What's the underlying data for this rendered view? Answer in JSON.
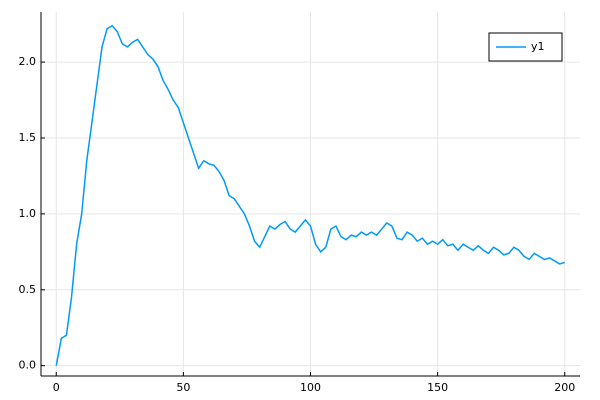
{
  "chart_data": {
    "type": "line",
    "x": [
      0,
      2,
      4,
      6,
      8,
      10,
      12,
      14,
      16,
      18,
      20,
      22,
      24,
      26,
      28,
      30,
      32,
      34,
      36,
      38,
      40,
      42,
      44,
      46,
      48,
      50,
      52,
      54,
      56,
      58,
      60,
      62,
      64,
      66,
      68,
      70,
      72,
      74,
      76,
      78,
      80,
      82,
      84,
      86,
      88,
      90,
      92,
      94,
      96,
      98,
      100,
      102,
      104,
      106,
      108,
      110,
      112,
      114,
      116,
      118,
      120,
      122,
      124,
      126,
      128,
      130,
      132,
      134,
      136,
      138,
      140,
      142,
      144,
      146,
      148,
      150,
      152,
      154,
      156,
      158,
      160,
      162,
      164,
      166,
      168,
      170,
      172,
      174,
      176,
      178,
      180,
      182,
      184,
      186,
      188,
      190,
      192,
      194,
      196,
      198,
      200
    ],
    "series": [
      {
        "name": "y1",
        "color": "#009af9",
        "values": [
          0,
          0.18,
          0.2,
          0.45,
          0.8,
          1.0,
          1.35,
          1.6,
          1.85,
          2.1,
          2.22,
          2.24,
          2.2,
          2.12,
          2.1,
          2.13,
          2.15,
          2.1,
          2.05,
          2.02,
          1.97,
          1.88,
          1.82,
          1.75,
          1.7,
          1.6,
          1.5,
          1.4,
          1.3,
          1.35,
          1.33,
          1.32,
          1.28,
          1.22,
          1.12,
          1.1,
          1.05,
          1.0,
          0.92,
          0.82,
          0.78,
          0.85,
          0.92,
          0.9,
          0.93,
          0.95,
          0.9,
          0.88,
          0.92,
          0.96,
          0.92,
          0.8,
          0.75,
          0.78,
          0.9,
          0.92,
          0.85,
          0.83,
          0.86,
          0.85,
          0.88,
          0.86,
          0.88,
          0.86,
          0.9,
          0.94,
          0.92,
          0.84,
          0.83,
          0.88,
          0.86,
          0.82,
          0.84,
          0.8,
          0.82,
          0.8,
          0.83,
          0.79,
          0.8,
          0.76,
          0.8,
          0.78,
          0.76,
          0.79,
          0.76,
          0.74,
          0.78,
          0.76,
          0.73,
          0.74,
          0.78,
          0.76,
          0.72,
          0.7,
          0.74,
          0.72,
          0.7,
          0.71,
          0.69,
          0.67,
          0.68
        ]
      }
    ],
    "xlim": [
      -6,
      206
    ],
    "ylim": [
      -0.068,
      2.33
    ],
    "xticks": [
      0,
      50,
      100,
      150,
      200
    ],
    "yticks": [
      {
        "value": 0,
        "label": "0.0"
      },
      {
        "value": 0.5,
        "label": "0.5"
      },
      {
        "value": 1,
        "label": "1.0"
      },
      {
        "value": 1.5,
        "label": "1.5"
      },
      {
        "value": 2,
        "label": "2.0"
      }
    ],
    "grid": true,
    "legend": "top-right"
  }
}
